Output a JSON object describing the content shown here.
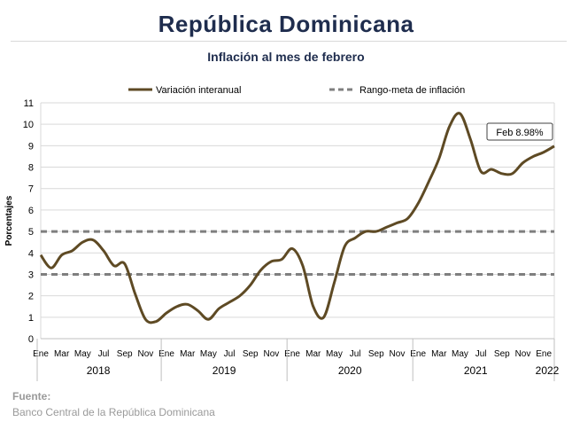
{
  "header": {
    "title": "República Dominicana",
    "subtitle": "Inflación al mes de febrero"
  },
  "footer": {
    "source_label": "Fuente:",
    "source_text": "Banco Central de la República Dominicana"
  },
  "colors": {
    "series": "#5e4a24",
    "target": "#7f7f7f",
    "grid": "#d9d9d9",
    "title": "#1f2d4e"
  },
  "chart_data": {
    "type": "line",
    "title": "Inflación al mes de febrero",
    "ylabel": "Porcentajes",
    "xlabel": "",
    "ylim": [
      0,
      11
    ],
    "yticks": [
      0,
      1,
      2,
      3,
      4,
      5,
      6,
      7,
      8,
      9,
      10,
      11
    ],
    "grid": true,
    "legend_position": "top",
    "month_tick_labels": [
      "Ene",
      "Mar",
      "May",
      "Jul",
      "Sep",
      "Nov",
      "Ene",
      "Mar",
      "May",
      "Jul",
      "Sep",
      "Nov",
      "Ene",
      "Mar",
      "May",
      "Jul",
      "Sep",
      "Nov",
      "Ene",
      "Mar",
      "May",
      "Jul",
      "Sep",
      "Nov",
      "Ene"
    ],
    "year_labels": [
      "2018",
      "2019",
      "2020",
      "2021",
      "2022"
    ],
    "series": [
      {
        "name": "Variación interanual",
        "style": "solid",
        "x": [
          "2018-01",
          "2018-02",
          "2018-03",
          "2018-04",
          "2018-05",
          "2018-06",
          "2018-07",
          "2018-08",
          "2018-09",
          "2018-10",
          "2018-11",
          "2018-12",
          "2019-01",
          "2019-02",
          "2019-03",
          "2019-04",
          "2019-05",
          "2019-06",
          "2019-07",
          "2019-08",
          "2019-09",
          "2019-10",
          "2019-11",
          "2019-12",
          "2020-01",
          "2020-02",
          "2020-03",
          "2020-04",
          "2020-05",
          "2020-06",
          "2020-07",
          "2020-08",
          "2020-09",
          "2020-10",
          "2020-11",
          "2020-12",
          "2021-01",
          "2021-02",
          "2021-03",
          "2021-04",
          "2021-05",
          "2021-06",
          "2021-07",
          "2021-08",
          "2021-09",
          "2021-10",
          "2021-11",
          "2021-12",
          "2022-01",
          "2022-02"
        ],
        "values": [
          3.9,
          3.3,
          3.9,
          4.1,
          4.5,
          4.6,
          4.1,
          3.4,
          3.5,
          2.1,
          0.9,
          0.8,
          1.2,
          1.5,
          1.6,
          1.3,
          0.9,
          1.4,
          1.7,
          2.0,
          2.5,
          3.2,
          3.6,
          3.7,
          4.2,
          3.4,
          1.5,
          1.0,
          2.6,
          4.3,
          4.7,
          5.0,
          5.0,
          5.2,
          5.4,
          5.6,
          6.3,
          7.3,
          8.4,
          9.9,
          10.5,
          9.3,
          7.8,
          7.9,
          7.7,
          7.7,
          8.2,
          8.5,
          8.7,
          8.98
        ]
      },
      {
        "name": "Rango-meta de inflación",
        "style": "dashed",
        "lines": [
          3,
          5
        ]
      }
    ],
    "annotations": [
      {
        "text": "Feb 8.98%",
        "x": "2022-02",
        "y": 8.98
      }
    ]
  }
}
